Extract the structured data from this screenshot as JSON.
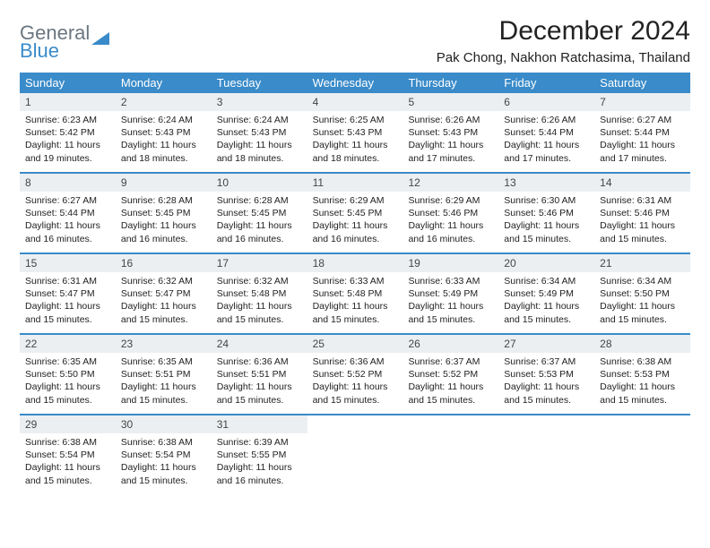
{
  "logo": {
    "text1": "General",
    "text2": "Blue",
    "text1_color": "#6b7680",
    "text2_color": "#3a8bc9",
    "triangle_color": "#3a8bc9"
  },
  "header": {
    "month_title": "December 2024",
    "location": "Pak Chong, Nakhon Ratchasima, Thailand",
    "title_fontsize": 30,
    "location_fontsize": 15
  },
  "calendar": {
    "header_bg": "#3a8bc9",
    "header_text_color": "#ffffff",
    "daynum_bg": "#eceff1",
    "row_border_color": "#3a8bc9",
    "dow_fontsize": 13,
    "body_fontsize": 10.5,
    "days_of_week": [
      "Sunday",
      "Monday",
      "Tuesday",
      "Wednesday",
      "Thursday",
      "Friday",
      "Saturday"
    ],
    "weeks": [
      [
        {
          "num": "1",
          "sunrise": "Sunrise: 6:23 AM",
          "sunset": "Sunset: 5:42 PM",
          "daylight": "Daylight: 11 hours and 19 minutes."
        },
        {
          "num": "2",
          "sunrise": "Sunrise: 6:24 AM",
          "sunset": "Sunset: 5:43 PM",
          "daylight": "Daylight: 11 hours and 18 minutes."
        },
        {
          "num": "3",
          "sunrise": "Sunrise: 6:24 AM",
          "sunset": "Sunset: 5:43 PM",
          "daylight": "Daylight: 11 hours and 18 minutes."
        },
        {
          "num": "4",
          "sunrise": "Sunrise: 6:25 AM",
          "sunset": "Sunset: 5:43 PM",
          "daylight": "Daylight: 11 hours and 18 minutes."
        },
        {
          "num": "5",
          "sunrise": "Sunrise: 6:26 AM",
          "sunset": "Sunset: 5:43 PM",
          "daylight": "Daylight: 11 hours and 17 minutes."
        },
        {
          "num": "6",
          "sunrise": "Sunrise: 6:26 AM",
          "sunset": "Sunset: 5:44 PM",
          "daylight": "Daylight: 11 hours and 17 minutes."
        },
        {
          "num": "7",
          "sunrise": "Sunrise: 6:27 AM",
          "sunset": "Sunset: 5:44 PM",
          "daylight": "Daylight: 11 hours and 17 minutes."
        }
      ],
      [
        {
          "num": "8",
          "sunrise": "Sunrise: 6:27 AM",
          "sunset": "Sunset: 5:44 PM",
          "daylight": "Daylight: 11 hours and 16 minutes."
        },
        {
          "num": "9",
          "sunrise": "Sunrise: 6:28 AM",
          "sunset": "Sunset: 5:45 PM",
          "daylight": "Daylight: 11 hours and 16 minutes."
        },
        {
          "num": "10",
          "sunrise": "Sunrise: 6:28 AM",
          "sunset": "Sunset: 5:45 PM",
          "daylight": "Daylight: 11 hours and 16 minutes."
        },
        {
          "num": "11",
          "sunrise": "Sunrise: 6:29 AM",
          "sunset": "Sunset: 5:45 PM",
          "daylight": "Daylight: 11 hours and 16 minutes."
        },
        {
          "num": "12",
          "sunrise": "Sunrise: 6:29 AM",
          "sunset": "Sunset: 5:46 PM",
          "daylight": "Daylight: 11 hours and 16 minutes."
        },
        {
          "num": "13",
          "sunrise": "Sunrise: 6:30 AM",
          "sunset": "Sunset: 5:46 PM",
          "daylight": "Daylight: 11 hours and 15 minutes."
        },
        {
          "num": "14",
          "sunrise": "Sunrise: 6:31 AM",
          "sunset": "Sunset: 5:46 PM",
          "daylight": "Daylight: 11 hours and 15 minutes."
        }
      ],
      [
        {
          "num": "15",
          "sunrise": "Sunrise: 6:31 AM",
          "sunset": "Sunset: 5:47 PM",
          "daylight": "Daylight: 11 hours and 15 minutes."
        },
        {
          "num": "16",
          "sunrise": "Sunrise: 6:32 AM",
          "sunset": "Sunset: 5:47 PM",
          "daylight": "Daylight: 11 hours and 15 minutes."
        },
        {
          "num": "17",
          "sunrise": "Sunrise: 6:32 AM",
          "sunset": "Sunset: 5:48 PM",
          "daylight": "Daylight: 11 hours and 15 minutes."
        },
        {
          "num": "18",
          "sunrise": "Sunrise: 6:33 AM",
          "sunset": "Sunset: 5:48 PM",
          "daylight": "Daylight: 11 hours and 15 minutes."
        },
        {
          "num": "19",
          "sunrise": "Sunrise: 6:33 AM",
          "sunset": "Sunset: 5:49 PM",
          "daylight": "Daylight: 11 hours and 15 minutes."
        },
        {
          "num": "20",
          "sunrise": "Sunrise: 6:34 AM",
          "sunset": "Sunset: 5:49 PM",
          "daylight": "Daylight: 11 hours and 15 minutes."
        },
        {
          "num": "21",
          "sunrise": "Sunrise: 6:34 AM",
          "sunset": "Sunset: 5:50 PM",
          "daylight": "Daylight: 11 hours and 15 minutes."
        }
      ],
      [
        {
          "num": "22",
          "sunrise": "Sunrise: 6:35 AM",
          "sunset": "Sunset: 5:50 PM",
          "daylight": "Daylight: 11 hours and 15 minutes."
        },
        {
          "num": "23",
          "sunrise": "Sunrise: 6:35 AM",
          "sunset": "Sunset: 5:51 PM",
          "daylight": "Daylight: 11 hours and 15 minutes."
        },
        {
          "num": "24",
          "sunrise": "Sunrise: 6:36 AM",
          "sunset": "Sunset: 5:51 PM",
          "daylight": "Daylight: 11 hours and 15 minutes."
        },
        {
          "num": "25",
          "sunrise": "Sunrise: 6:36 AM",
          "sunset": "Sunset: 5:52 PM",
          "daylight": "Daylight: 11 hours and 15 minutes."
        },
        {
          "num": "26",
          "sunrise": "Sunrise: 6:37 AM",
          "sunset": "Sunset: 5:52 PM",
          "daylight": "Daylight: 11 hours and 15 minutes."
        },
        {
          "num": "27",
          "sunrise": "Sunrise: 6:37 AM",
          "sunset": "Sunset: 5:53 PM",
          "daylight": "Daylight: 11 hours and 15 minutes."
        },
        {
          "num": "28",
          "sunrise": "Sunrise: 6:38 AM",
          "sunset": "Sunset: 5:53 PM",
          "daylight": "Daylight: 11 hours and 15 minutes."
        }
      ],
      [
        {
          "num": "29",
          "sunrise": "Sunrise: 6:38 AM",
          "sunset": "Sunset: 5:54 PM",
          "daylight": "Daylight: 11 hours and 15 minutes."
        },
        {
          "num": "30",
          "sunrise": "Sunrise: 6:38 AM",
          "sunset": "Sunset: 5:54 PM",
          "daylight": "Daylight: 11 hours and 15 minutes."
        },
        {
          "num": "31",
          "sunrise": "Sunrise: 6:39 AM",
          "sunset": "Sunset: 5:55 PM",
          "daylight": "Daylight: 11 hours and 16 minutes."
        },
        {
          "empty": true
        },
        {
          "empty": true
        },
        {
          "empty": true
        },
        {
          "empty": true
        }
      ]
    ]
  }
}
